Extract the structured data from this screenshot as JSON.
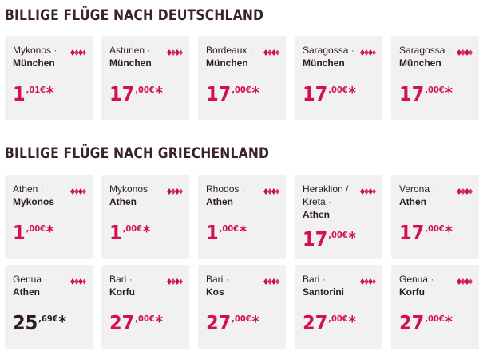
{
  "colors": {
    "accent": "#d3114a",
    "card_bg": "#f2f1f1",
    "title": "#3b2426"
  },
  "sections": [
    {
      "title": "BILLIGE FLÜGE NACH DEUTSCHLAND",
      "cards": [
        {
          "origin": "Mykonos",
          "sep": "·",
          "destination": "München",
          "price_int": "1",
          "price_dec": ",01",
          "currency": "€",
          "asterisk": "*",
          "icon": "airline-logo-icon"
        },
        {
          "origin": "Asturien",
          "sep": "·",
          "destination": "München",
          "price_int": "17",
          "price_dec": ",00",
          "currency": "€",
          "asterisk": "*",
          "icon": "airline-logo-icon"
        },
        {
          "origin": "Bordeaux",
          "sep": "·",
          "destination": "München",
          "price_int": "17",
          "price_dec": ",00",
          "currency": "€",
          "asterisk": "*",
          "icon": "airline-logo-icon"
        },
        {
          "origin": "Saragossa",
          "sep": "·",
          "destination": "München",
          "price_int": "17",
          "price_dec": ",00",
          "currency": "€",
          "asterisk": "*",
          "icon": "airline-logo-icon"
        },
        {
          "origin": "Saragossa",
          "sep": "·",
          "destination": "München",
          "price_int": "17",
          "price_dec": ",00",
          "currency": "€",
          "asterisk": "*",
          "icon": "airline-logo-icon"
        }
      ]
    },
    {
      "title": "BILLIGE FLÜGE NACH GRIECHENLAND",
      "cards": [
        {
          "origin": "Athen",
          "sep": "·",
          "destination": "Mykonos",
          "price_int": "1",
          "price_dec": ",00",
          "currency": "€",
          "asterisk": "*",
          "icon": "airline-logo-icon"
        },
        {
          "origin": "Mykonos",
          "sep": "·",
          "destination": "Athen",
          "price_int": "1",
          "price_dec": ",00",
          "currency": "€",
          "asterisk": "*",
          "icon": "airline-logo-icon"
        },
        {
          "origin": "Rhodos",
          "sep": "·",
          "destination": "Athen",
          "price_int": "1",
          "price_dec": ",00",
          "currency": "€",
          "asterisk": "*",
          "icon": "airline-logo-icon"
        },
        {
          "origin": "Heraklion / Kreta",
          "sep": "·",
          "destination": "Athen",
          "price_int": "17",
          "price_dec": ",00",
          "currency": "€",
          "asterisk": "*",
          "icon": "airline-logo-icon"
        },
        {
          "origin": "Verona",
          "sep": "·",
          "destination": "Athen",
          "price_int": "17",
          "price_dec": ",00",
          "currency": "€",
          "asterisk": "*",
          "icon": "airline-logo-icon"
        },
        {
          "origin": "Genua",
          "sep": "·",
          "destination": "Athen",
          "price_int": "25",
          "price_dec": ",69",
          "currency": "€",
          "asterisk": "*",
          "icon": "airline-logo-icon"
        },
        {
          "origin": "Bari",
          "sep": "·",
          "destination": "Korfu",
          "price_int": "27",
          "price_dec": ",00",
          "currency": "€",
          "asterisk": "*",
          "icon": "airline-logo-icon"
        },
        {
          "origin": "Bari",
          "sep": "·",
          "destination": "Kos",
          "price_int": "27",
          "price_dec": ",00",
          "currency": "€",
          "asterisk": "*",
          "icon": "airline-logo-icon"
        },
        {
          "origin": "Bari",
          "sep": "·",
          "destination": "Santorini",
          "price_int": "27",
          "price_dec": ",00",
          "currency": "€",
          "asterisk": "*",
          "icon": "airline-logo-icon"
        },
        {
          "origin": "Genua",
          "sep": "·",
          "destination": "Korfu",
          "price_int": "27",
          "price_dec": ",00",
          "currency": "€",
          "asterisk": "*",
          "icon": "airline-logo-icon"
        }
      ]
    }
  ]
}
